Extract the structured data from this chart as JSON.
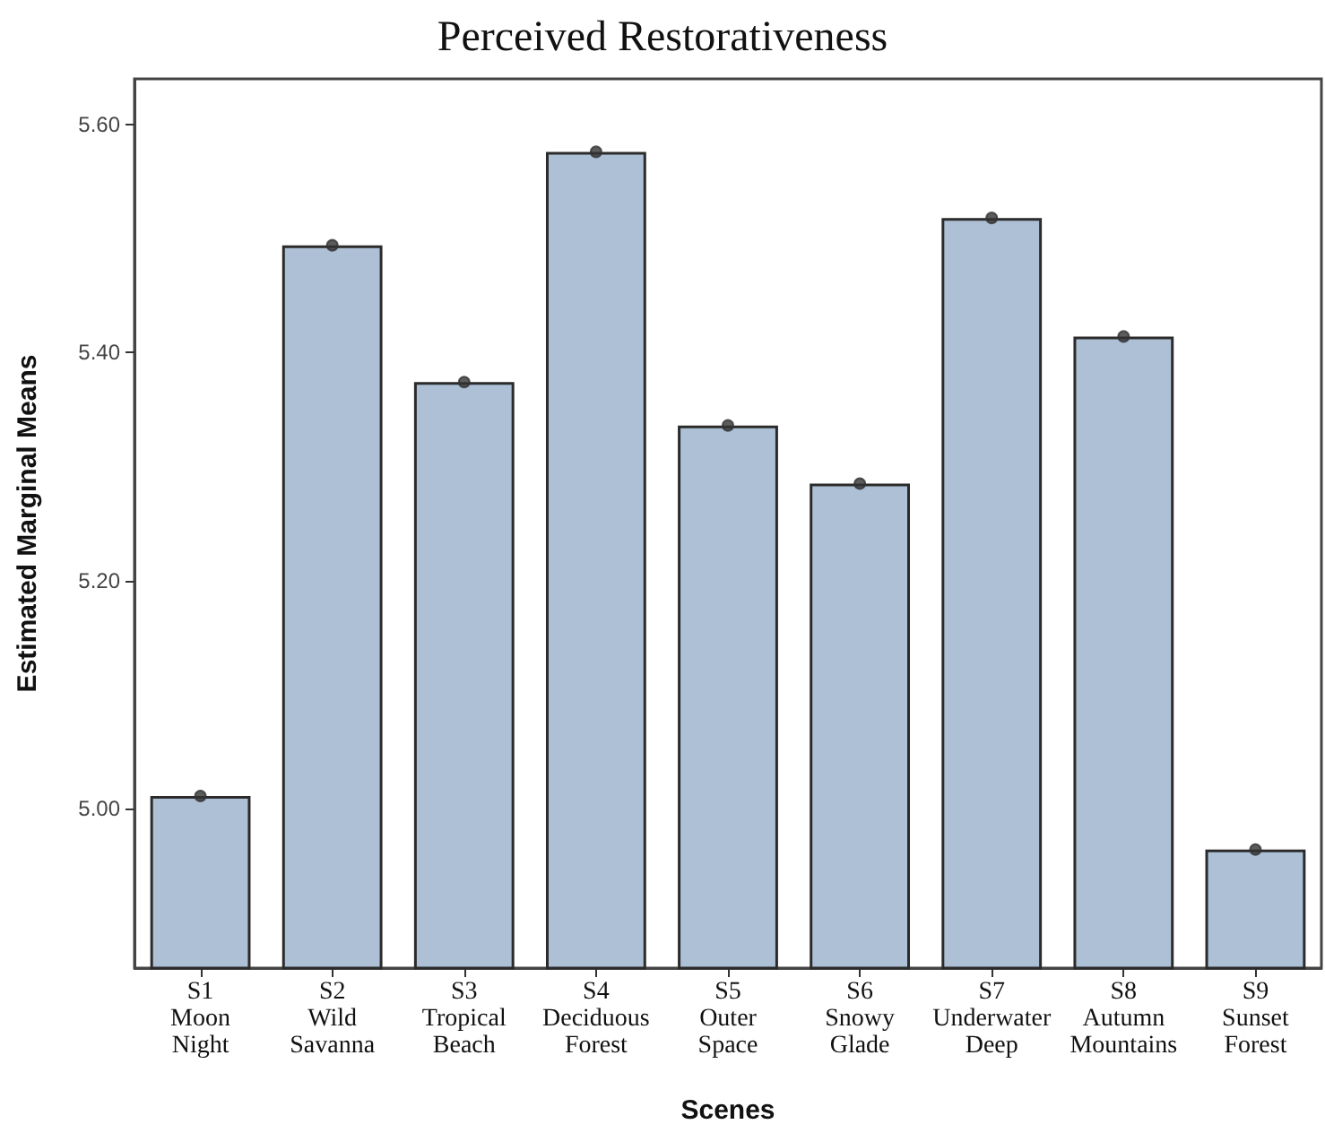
{
  "chart_data": {
    "type": "bar",
    "title": "Perceived Restorativeness",
    "xlabel": "Scenes",
    "ylabel": "Estimated Marginal Means",
    "categories": [
      "S1 Moon Night",
      "S2 Wild Savanna",
      "S3 Tropical Beach",
      "S4 Deciduous Forest",
      "S5 Outer Space",
      "S6 Snowy Glade",
      "S7 Underwater Deep",
      "S8 Autumn Mountains",
      "S9 Sunset Forest"
    ],
    "series": [
      {
        "color": "#adc0d6",
        "values": [
          5.011,
          5.494,
          5.374,
          5.576,
          5.336,
          5.285,
          5.518,
          5.414,
          4.964
        ]
      },
      {
        "type": "scatter",
        "color": "#333333",
        "marker": "circle",
        "x": [
          "S1 Moon Night",
          "S2 Wild Savanna",
          "S3 Tropical Beach",
          "S4 Deciduous Forest",
          "S5 Outer Space",
          "S6 Snowy Glade",
          "S7 Underwater Deep",
          "S8 Autumn Mountains",
          "S9 Sunset Forest"
        ],
        "values": [
          5.011,
          5.494,
          5.374,
          5.576,
          5.336,
          5.285,
          5.518,
          5.414,
          4.964
        ]
      }
    ],
    "ylim": [
      4.86,
      5.64
    ],
    "yticks": [
      {
        "value": 5.0,
        "label": "5.00"
      },
      {
        "value": 5.2,
        "label": "5.20"
      },
      {
        "value": 5.4,
        "label": "5.40"
      },
      {
        "value": 5.6,
        "label": "5.60"
      }
    ],
    "grid": false
  }
}
